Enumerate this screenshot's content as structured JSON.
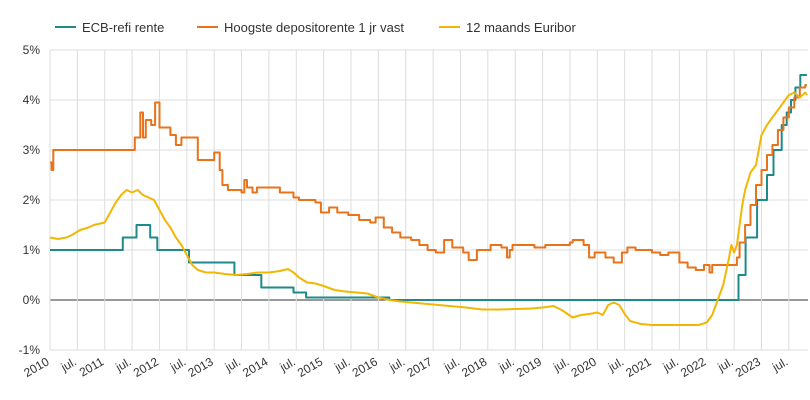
{
  "chart_data": {
    "type": "line",
    "title": "",
    "xlabel": "",
    "ylabel": "",
    "x_range": [
      "2010-01",
      "2023-12"
    ],
    "ylim": [
      -1,
      5
    ],
    "y_ticks": [
      -1,
      0,
      1,
      2,
      3,
      4,
      5
    ],
    "y_tick_labels": [
      "-1%",
      "0%",
      "1%",
      "2%",
      "3%",
      "4%",
      "5%"
    ],
    "grid": true,
    "legend_position": "top",
    "x_ticks": [
      {
        "label": "2010",
        "date": 2010.0
      },
      {
        "label": "jul.",
        "date": 2010.5
      },
      {
        "label": "2011",
        "date": 2011.0
      },
      {
        "label": "jul.",
        "date": 2011.5
      },
      {
        "label": "2012",
        "date": 2012.0
      },
      {
        "label": "jul.",
        "date": 2012.5
      },
      {
        "label": "2013",
        "date": 2013.0
      },
      {
        "label": "jul.",
        "date": 2013.5
      },
      {
        "label": "2014",
        "date": 2014.0
      },
      {
        "label": "jul.",
        "date": 2014.5
      },
      {
        "label": "2015",
        "date": 2015.0
      },
      {
        "label": "jul.",
        "date": 2015.5
      },
      {
        "label": "2016",
        "date": 2016.0
      },
      {
        "label": "jul.",
        "date": 2016.5
      },
      {
        "label": "2017",
        "date": 2017.0
      },
      {
        "label": "jul.",
        "date": 2017.5
      },
      {
        "label": "2018",
        "date": 2018.0
      },
      {
        "label": "jul.",
        "date": 2018.5
      },
      {
        "label": "2019",
        "date": 2019.0
      },
      {
        "label": "jul.",
        "date": 2019.5
      },
      {
        "label": "2020",
        "date": 2020.0
      },
      {
        "label": "jul.",
        "date": 2020.5
      },
      {
        "label": "2021",
        "date": 2021.0
      },
      {
        "label": "jul.",
        "date": 2021.5
      },
      {
        "label": "2022",
        "date": 2022.0
      },
      {
        "label": "jul.",
        "date": 2022.5
      },
      {
        "label": "2023",
        "date": 2023.0
      },
      {
        "label": "jul.",
        "date": 2023.5
      }
    ],
    "series": [
      {
        "name": "ECB-refi rente",
        "color": "#1f8a8a",
        "step": true,
        "points": [
          [
            2010.0,
            1.0
          ],
          [
            2011.33,
            1.25
          ],
          [
            2011.58,
            1.5
          ],
          [
            2011.83,
            1.25
          ],
          [
            2011.96,
            1.0
          ],
          [
            2012.54,
            0.75
          ],
          [
            2013.37,
            0.5
          ],
          [
            2013.86,
            0.25
          ],
          [
            2014.45,
            0.15
          ],
          [
            2014.68,
            0.05
          ],
          [
            2016.2,
            0.0
          ],
          [
            2022.58,
            0.5
          ],
          [
            2022.71,
            1.25
          ],
          [
            2022.92,
            2.0
          ],
          [
            2023.1,
            2.5
          ],
          [
            2023.22,
            3.0
          ],
          [
            2023.37,
            3.5
          ],
          [
            2023.46,
            3.75
          ],
          [
            2023.54,
            4.0
          ],
          [
            2023.62,
            4.25
          ],
          [
            2023.71,
            4.5
          ],
          [
            2023.83,
            4.5
          ]
        ]
      },
      {
        "name": "Hoogste depositorente 1 jr vast",
        "color": "#e8731a",
        "step": true,
        "points": [
          [
            2010.0,
            2.75
          ],
          [
            2010.03,
            2.6
          ],
          [
            2010.06,
            3.0
          ],
          [
            2011.5,
            3.0
          ],
          [
            2011.55,
            3.25
          ],
          [
            2011.65,
            3.75
          ],
          [
            2011.7,
            3.25
          ],
          [
            2011.75,
            3.6
          ],
          [
            2011.85,
            3.5
          ],
          [
            2011.92,
            3.95
          ],
          [
            2012.0,
            3.45
          ],
          [
            2012.2,
            3.3
          ],
          [
            2012.3,
            3.1
          ],
          [
            2012.4,
            3.25
          ],
          [
            2012.7,
            2.8
          ],
          [
            2013.0,
            2.95
          ],
          [
            2013.1,
            2.6
          ],
          [
            2013.15,
            2.3
          ],
          [
            2013.25,
            2.2
          ],
          [
            2013.5,
            2.15
          ],
          [
            2013.55,
            2.4
          ],
          [
            2013.6,
            2.25
          ],
          [
            2013.7,
            2.15
          ],
          [
            2013.78,
            2.25
          ],
          [
            2014.2,
            2.15
          ],
          [
            2014.45,
            2.05
          ],
          [
            2014.55,
            2.0
          ],
          [
            2014.85,
            1.95
          ],
          [
            2014.95,
            1.75
          ],
          [
            2015.1,
            1.85
          ],
          [
            2015.25,
            1.75
          ],
          [
            2015.45,
            1.7
          ],
          [
            2015.65,
            1.6
          ],
          [
            2015.85,
            1.55
          ],
          [
            2015.95,
            1.65
          ],
          [
            2016.1,
            1.45
          ],
          [
            2016.25,
            1.35
          ],
          [
            2016.4,
            1.25
          ],
          [
            2016.6,
            1.2
          ],
          [
            2016.75,
            1.1
          ],
          [
            2016.9,
            1.0
          ],
          [
            2017.05,
            0.95
          ],
          [
            2017.2,
            1.2
          ],
          [
            2017.35,
            1.05
          ],
          [
            2017.55,
            0.95
          ],
          [
            2017.65,
            0.8
          ],
          [
            2017.8,
            1.0
          ],
          [
            2018.05,
            1.1
          ],
          [
            2018.25,
            1.05
          ],
          [
            2018.35,
            0.85
          ],
          [
            2018.4,
            1.0
          ],
          [
            2018.45,
            1.1
          ],
          [
            2018.85,
            1.05
          ],
          [
            2019.05,
            1.1
          ],
          [
            2019.5,
            1.15
          ],
          [
            2019.55,
            1.2
          ],
          [
            2019.75,
            1.1
          ],
          [
            2019.85,
            0.85
          ],
          [
            2019.95,
            0.95
          ],
          [
            2020.15,
            0.85
          ],
          [
            2020.3,
            0.75
          ],
          [
            2020.45,
            0.95
          ],
          [
            2020.55,
            1.05
          ],
          [
            2020.7,
            1.0
          ],
          [
            2021.0,
            0.95
          ],
          [
            2021.15,
            0.9
          ],
          [
            2021.3,
            0.95
          ],
          [
            2021.5,
            0.75
          ],
          [
            2021.65,
            0.65
          ],
          [
            2021.8,
            0.6
          ],
          [
            2021.95,
            0.7
          ],
          [
            2022.05,
            0.55
          ],
          [
            2022.1,
            0.7
          ],
          [
            2022.4,
            0.7
          ],
          [
            2022.55,
            0.85
          ],
          [
            2022.6,
            1.15
          ],
          [
            2022.7,
            1.5
          ],
          [
            2022.8,
            1.9
          ],
          [
            2022.9,
            2.3
          ],
          [
            2023.0,
            2.6
          ],
          [
            2023.1,
            2.9
          ],
          [
            2023.2,
            3.1
          ],
          [
            2023.3,
            3.4
          ],
          [
            2023.4,
            3.65
          ],
          [
            2023.5,
            3.85
          ],
          [
            2023.6,
            4.05
          ],
          [
            2023.7,
            4.25
          ],
          [
            2023.8,
            4.3
          ],
          [
            2023.83,
            4.3
          ]
        ]
      },
      {
        "name": "12 maands Euribor",
        "color": "#f2b705",
        "step": false,
        "points": [
          [
            2010.0,
            1.25
          ],
          [
            2010.15,
            1.22
          ],
          [
            2010.3,
            1.25
          ],
          [
            2010.4,
            1.3
          ],
          [
            2010.55,
            1.4
          ],
          [
            2010.7,
            1.45
          ],
          [
            2010.8,
            1.5
          ],
          [
            2011.0,
            1.55
          ],
          [
            2011.1,
            1.75
          ],
          [
            2011.2,
            1.95
          ],
          [
            2011.3,
            2.1
          ],
          [
            2011.4,
            2.2
          ],
          [
            2011.5,
            2.15
          ],
          [
            2011.6,
            2.2
          ],
          [
            2011.7,
            2.1
          ],
          [
            2011.8,
            2.05
          ],
          [
            2011.9,
            2.0
          ],
          [
            2012.0,
            1.8
          ],
          [
            2012.1,
            1.6
          ],
          [
            2012.2,
            1.45
          ],
          [
            2012.3,
            1.25
          ],
          [
            2012.4,
            1.1
          ],
          [
            2012.5,
            0.9
          ],
          [
            2012.6,
            0.7
          ],
          [
            2012.7,
            0.6
          ],
          [
            2012.85,
            0.55
          ],
          [
            2013.0,
            0.55
          ],
          [
            2013.2,
            0.52
          ],
          [
            2013.4,
            0.5
          ],
          [
            2013.6,
            0.52
          ],
          [
            2013.8,
            0.55
          ],
          [
            2014.0,
            0.55
          ],
          [
            2014.2,
            0.58
          ],
          [
            2014.35,
            0.62
          ],
          [
            2014.45,
            0.55
          ],
          [
            2014.55,
            0.45
          ],
          [
            2014.7,
            0.35
          ],
          [
            2014.85,
            0.33
          ],
          [
            2015.0,
            0.28
          ],
          [
            2015.2,
            0.2
          ],
          [
            2015.4,
            0.17
          ],
          [
            2015.6,
            0.15
          ],
          [
            2015.8,
            0.13
          ],
          [
            2016.0,
            0.05
          ],
          [
            2016.2,
            0.0
          ],
          [
            2016.4,
            -0.03
          ],
          [
            2016.6,
            -0.05
          ],
          [
            2016.8,
            -0.07
          ],
          [
            2017.0,
            -0.09
          ],
          [
            2017.3,
            -0.12
          ],
          [
            2017.6,
            -0.15
          ],
          [
            2017.9,
            -0.19
          ],
          [
            2018.2,
            -0.19
          ],
          [
            2018.5,
            -0.18
          ],
          [
            2018.8,
            -0.17
          ],
          [
            2019.0,
            -0.15
          ],
          [
            2019.2,
            -0.12
          ],
          [
            2019.35,
            -0.2
          ],
          [
            2019.55,
            -0.35
          ],
          [
            2019.7,
            -0.3
          ],
          [
            2019.85,
            -0.28
          ],
          [
            2020.0,
            -0.25
          ],
          [
            2020.1,
            -0.3
          ],
          [
            2020.2,
            -0.1
          ],
          [
            2020.3,
            -0.05
          ],
          [
            2020.4,
            -0.1
          ],
          [
            2020.5,
            -0.28
          ],
          [
            2020.6,
            -0.42
          ],
          [
            2020.8,
            -0.48
          ],
          [
            2021.0,
            -0.5
          ],
          [
            2021.3,
            -0.5
          ],
          [
            2021.6,
            -0.5
          ],
          [
            2021.85,
            -0.5
          ],
          [
            2022.0,
            -0.45
          ],
          [
            2022.1,
            -0.3
          ],
          [
            2022.2,
            0.0
          ],
          [
            2022.3,
            0.3
          ],
          [
            2022.4,
            0.8
          ],
          [
            2022.45,
            1.1
          ],
          [
            2022.5,
            0.95
          ],
          [
            2022.55,
            1.1
          ],
          [
            2022.6,
            1.5
          ],
          [
            2022.65,
            1.9
          ],
          [
            2022.7,
            2.2
          ],
          [
            2022.8,
            2.55
          ],
          [
            2022.9,
            2.7
          ],
          [
            2023.0,
            3.3
          ],
          [
            2023.1,
            3.5
          ],
          [
            2023.2,
            3.65
          ],
          [
            2023.3,
            3.8
          ],
          [
            2023.4,
            3.95
          ],
          [
            2023.5,
            4.1
          ],
          [
            2023.6,
            4.15
          ],
          [
            2023.7,
            4.05
          ],
          [
            2023.8,
            4.15
          ],
          [
            2023.83,
            4.1
          ]
        ]
      }
    ]
  }
}
